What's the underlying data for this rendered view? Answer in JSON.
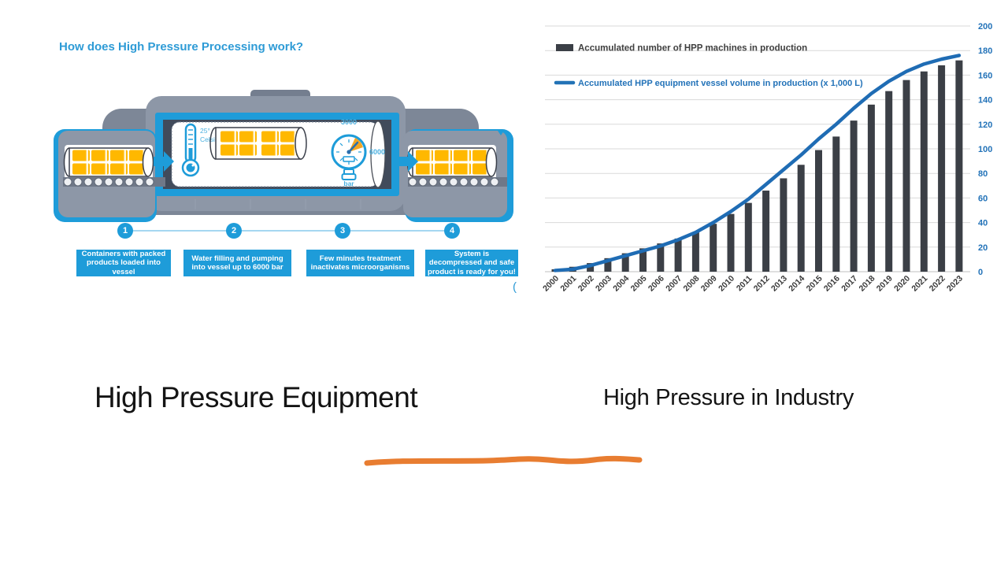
{
  "hpp_diagram": {
    "title": "How does High Pressure Processing work?",
    "thermometer": {
      "temp": "25°",
      "unit": "Celsius"
    },
    "gauge": {
      "top_value": "3000",
      "right_value": "6000",
      "unit": "bar"
    },
    "steps": [
      {
        "number": "1",
        "caption": "Containers with packed products loaded into vessel"
      },
      {
        "number": "2",
        "caption": "Water filling and pumping into vessel up to 6000 bar"
      },
      {
        "number": "3",
        "caption": "Few minutes treatment inactivates microorganisms"
      },
      {
        "number": "4",
        "caption": "System is decompressed and safe product is ready for you!"
      }
    ],
    "stray_mark": "(",
    "colors": {
      "blue": "#1e9cd9",
      "light_blue": "#4ab0e0",
      "machine_gray": "#8d97a7",
      "machine_gray_back": "#7d8797",
      "interior_dark": "#414b5b",
      "package_yellow": "#ffb800",
      "gauge_orange": "#f5a623"
    }
  },
  "chart_data": {
    "type": "bar",
    "title": "",
    "xlabel": "",
    "ylabel": "",
    "categories": [
      "2000",
      "2001",
      "2002",
      "2003",
      "2004",
      "2005",
      "2006",
      "2007",
      "2008",
      "2009",
      "2010",
      "2011",
      "2012",
      "2013",
      "2014",
      "2015",
      "2016",
      "2017",
      "2018",
      "2019",
      "2020",
      "2021",
      "2022",
      "2023"
    ],
    "series": [
      {
        "name": "Accumulated number of HPP machines in production",
        "type": "bar",
        "color": "#3b3f46",
        "values": [
          2,
          4,
          7,
          11,
          15,
          19,
          23,
          27,
          32,
          39,
          47,
          56,
          66,
          76,
          87,
          99,
          110,
          123,
          136,
          147,
          156,
          163,
          168,
          172
        ]
      },
      {
        "name": "Accumulated HPP equipment vessel volume in production (x 1,000 L)",
        "type": "line",
        "color": "#1f6cb4",
        "values": [
          1,
          2,
          5,
          9,
          13,
          17,
          21,
          26,
          32,
          40,
          49,
          59,
          71,
          83,
          95,
          108,
          120,
          133,
          145,
          155,
          163,
          169,
          173,
          176
        ]
      }
    ],
    "ylim": [
      0,
      200
    ],
    "ytick_step": 20,
    "grid": true,
    "legend_position": "top-left",
    "style": {
      "ylabel_color": "#2272b8",
      "xlabel_color": "#3a3a3a",
      "grid_color": "#d9d9d9",
      "axis_color": "#bfbfbf"
    }
  },
  "footer": {
    "left_title": "High Pressure Equipment",
    "right_title": "High Pressure in Industry",
    "underline_color": "#e87d31"
  }
}
